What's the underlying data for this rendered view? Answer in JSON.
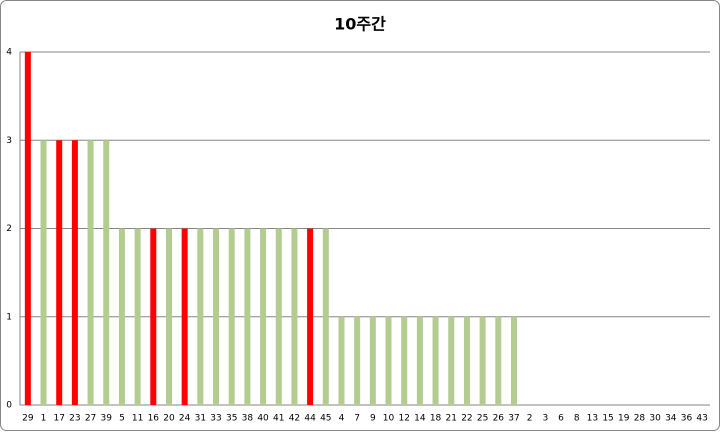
{
  "chart_data": {
    "type": "bar",
    "title": "10주간",
    "categories": [
      "29",
      "1",
      "17",
      "23",
      "27",
      "39",
      "5",
      "11",
      "16",
      "20",
      "24",
      "31",
      "33",
      "35",
      "38",
      "40",
      "41",
      "42",
      "44",
      "45",
      "4",
      "7",
      "9",
      "10",
      "12",
      "14",
      "18",
      "21",
      "22",
      "25",
      "26",
      "37",
      "2",
      "3",
      "6",
      "8",
      "13",
      "15",
      "19",
      "28",
      "30",
      "34",
      "36",
      "43"
    ],
    "values": [
      4,
      3,
      3,
      3,
      3,
      3,
      2,
      2,
      2,
      2,
      2,
      2,
      2,
      2,
      2,
      2,
      2,
      2,
      2,
      2,
      1,
      1,
      1,
      1,
      1,
      1,
      1,
      1,
      1,
      1,
      1,
      1,
      0,
      0,
      0,
      0,
      0,
      0,
      0,
      0,
      0,
      0,
      0,
      0
    ],
    "colors": [
      "#ff0000",
      "#b3cc8f",
      "#ff0000",
      "#ff0000",
      "#b3cc8f",
      "#b3cc8f",
      "#b3cc8f",
      "#b3cc8f",
      "#ff0000",
      "#b3cc8f",
      "#ff0000",
      "#b3cc8f",
      "#b3cc8f",
      "#b3cc8f",
      "#b3cc8f",
      "#b3cc8f",
      "#b3cc8f",
      "#b3cc8f",
      "#ff0000",
      "#b3cc8f",
      "#b3cc8f",
      "#b3cc8f",
      "#b3cc8f",
      "#b3cc8f",
      "#b3cc8f",
      "#b3cc8f",
      "#b3cc8f",
      "#b3cc8f",
      "#b3cc8f",
      "#b3cc8f",
      "#b3cc8f",
      "#b3cc8f",
      "#b3cc8f",
      "#b3cc8f",
      "#b3cc8f",
      "#b3cc8f",
      "#b3cc8f",
      "#b3cc8f",
      "#b3cc8f",
      "#b3cc8f",
      "#b3cc8f",
      "#b3cc8f",
      "#b3cc8f",
      "#b3cc8f"
    ],
    "ylim": [
      0,
      4
    ],
    "yticks": [
      0,
      1,
      2,
      3,
      4
    ],
    "grid": true
  }
}
